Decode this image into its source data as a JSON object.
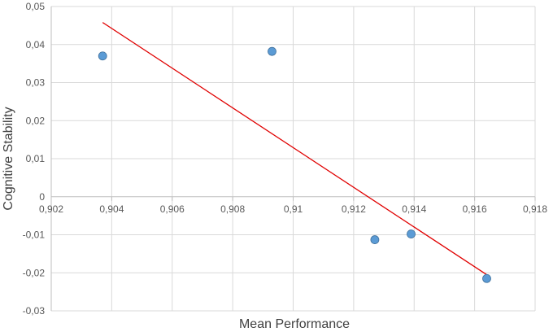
{
  "chart_data": {
    "type": "scatter",
    "xlabel": "Mean Performance",
    "ylabel": "Cognitive Stability",
    "xlim": [
      0.902,
      0.918
    ],
    "ylim": [
      -0.03,
      0.05
    ],
    "x_ticks": [
      "0,902",
      "0,904",
      "0,906",
      "0,908",
      "0,91",
      "0,912",
      "0,914",
      "0,916",
      "0,918"
    ],
    "x_tick_values": [
      0.902,
      0.904,
      0.906,
      0.908,
      0.91,
      0.912,
      0.914,
      0.916,
      0.918
    ],
    "y_ticks": [
      "0,05",
      "0,04",
      "0,03",
      "0,02",
      "0,01",
      "0",
      "-0,01",
      "-0,02",
      "-0,03"
    ],
    "y_tick_values": [
      0.05,
      0.04,
      0.03,
      0.02,
      0.01,
      0,
      -0.01,
      -0.02,
      -0.03
    ],
    "grid": true,
    "points": [
      {
        "x": 0.9037,
        "y": 0.037
      },
      {
        "x": 0.9093,
        "y": 0.0382
      },
      {
        "x": 0.9127,
        "y": -0.0113
      },
      {
        "x": 0.9139,
        "y": -0.0098
      },
      {
        "x": 0.9164,
        "y": -0.0215
      }
    ],
    "trendline": {
      "type": "linear",
      "x_start": 0.9037,
      "x_end": 0.9164,
      "y_start": 0.0458,
      "y_end": -0.0205
    },
    "colors": {
      "points": "#5b9bd5",
      "trendline": "#e00000",
      "grid": "#d9d9d9"
    }
  }
}
